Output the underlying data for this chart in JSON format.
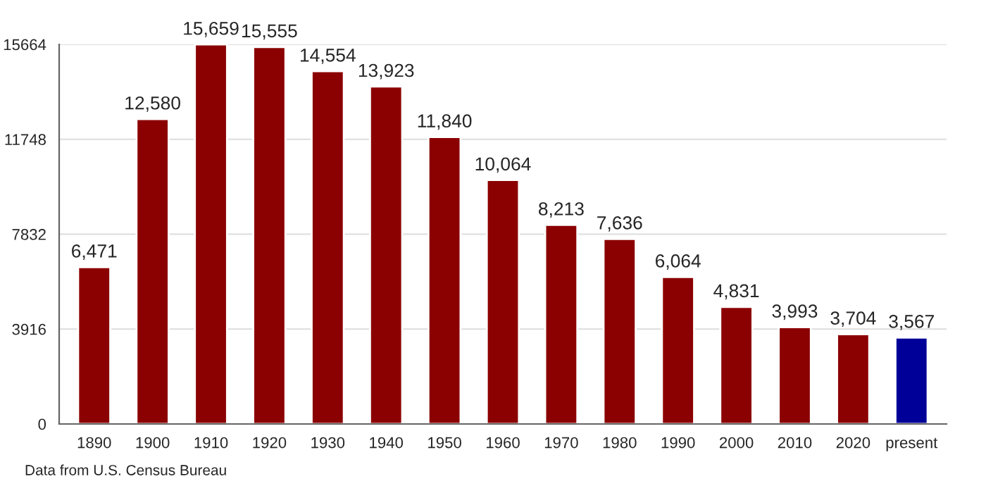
{
  "chart_data": {
    "type": "bar",
    "categories": [
      "1890",
      "1900",
      "1910",
      "1920",
      "1930",
      "1940",
      "1950",
      "1960",
      "1970",
      "1980",
      "1990",
      "2000",
      "2010",
      "2020",
      "present"
    ],
    "values": [
      6471,
      12580,
      15659,
      15555,
      14554,
      13923,
      11840,
      10064,
      8213,
      7636,
      6064,
      4831,
      3993,
      3704,
      3567
    ],
    "value_labels": [
      "6,471",
      "12,580",
      "15,659",
      "15,555",
      "14,554",
      "13,923",
      "11,840",
      "10,064",
      "8,213",
      "7,636",
      "6,064",
      "4,831",
      "3,993",
      "3,704",
      "3,567"
    ],
    "colors": [
      "#8b0000",
      "#8b0000",
      "#8b0000",
      "#8b0000",
      "#8b0000",
      "#8b0000",
      "#8b0000",
      "#8b0000",
      "#8b0000",
      "#8b0000",
      "#8b0000",
      "#8b0000",
      "#8b0000",
      "#8b0000",
      "#000099"
    ],
    "ylim": [
      0,
      15664
    ],
    "yticks": [
      0,
      3916,
      7832,
      11748,
      15664
    ],
    "grid": "y",
    "annotations": [
      "Data from U.S. Census Bureau"
    ]
  }
}
